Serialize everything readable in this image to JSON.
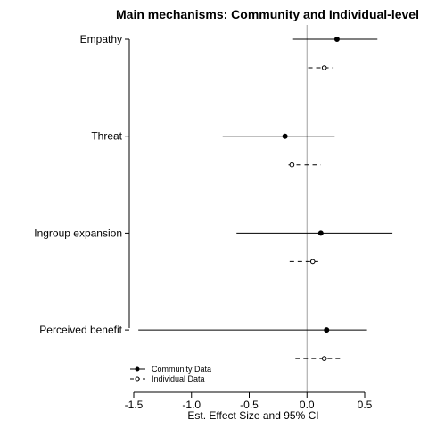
{
  "chart_data": {
    "type": "forest",
    "title": "Main mechanisms: Community and Individual-level",
    "xlabel": "Est. Effect Size and 95% CI",
    "ylabel": "",
    "xlim": [
      -1.5,
      0.5
    ],
    "xticks": [
      "-1.5",
      "-1.0",
      "-0.5",
      "0.0",
      "0.5"
    ],
    "xtick_values": [
      -1.5,
      -1.0,
      -0.5,
      0.0,
      0.5
    ],
    "reference_line": 0,
    "categories": [
      "Empathy",
      "Threat",
      "Ingroup expansion",
      "Perceived benefit"
    ],
    "series": [
      {
        "name": "Community Data",
        "style": "solid-line, filled-point",
        "estimates": [
          0.26,
          -0.19,
          0.12,
          0.17
        ],
        "lower": [
          -0.12,
          -0.73,
          -0.61,
          -1.46
        ],
        "upper": [
          0.61,
          0.24,
          0.74,
          0.52
        ]
      },
      {
        "name": "Individual Data",
        "style": "dashed-line, open-point",
        "estimates": [
          0.15,
          -0.13,
          0.05,
          0.15
        ],
        "lower": [
          0.01,
          -0.16,
          -0.15,
          -0.1
        ],
        "upper": [
          0.23,
          0.12,
          0.12,
          0.31
        ]
      }
    ],
    "legend_position": "bottom-left",
    "grid": false,
    "colors": {
      "ink": "#000000",
      "reference": "#a0a0a0"
    }
  }
}
